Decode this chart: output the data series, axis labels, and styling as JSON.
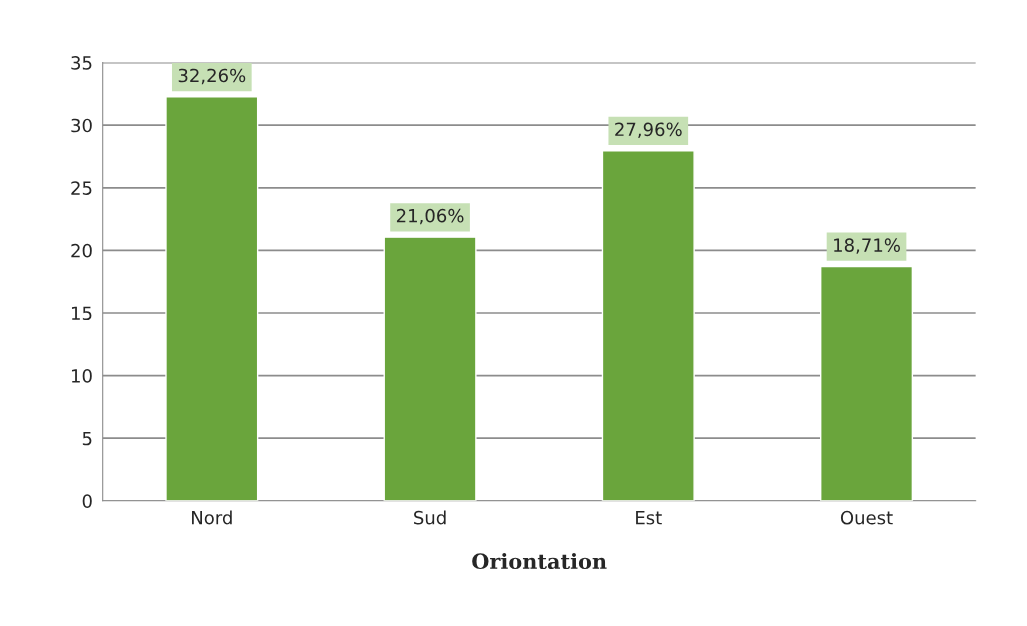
{
  "chart_data": {
    "type": "bar",
    "xlabel": "Oriontation",
    "categories": [
      "Nord",
      "Sud",
      "Est",
      "Ouest"
    ],
    "values": [
      32.26,
      21.06,
      27.96,
      18.71
    ],
    "value_labels": [
      "32,26%",
      "21,06%",
      "27,96%",
      "18,71%"
    ],
    "color": "#6aa53c",
    "ylim": [
      0,
      35
    ],
    "yticks": [
      0,
      5,
      10,
      15,
      20,
      25,
      30,
      35
    ],
    "grid": "y"
  }
}
